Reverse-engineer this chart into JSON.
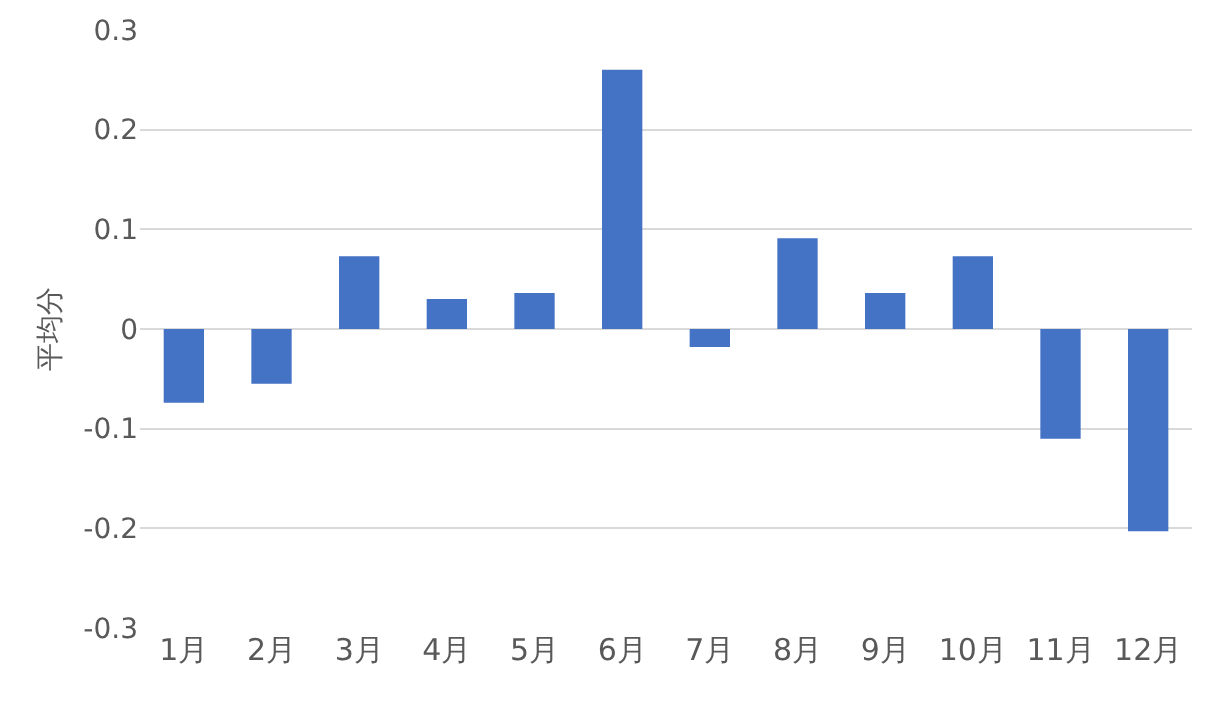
{
  "chart_data": {
    "type": "bar",
    "ylabel": "平均分",
    "categories": [
      "1月",
      "2月",
      "3月",
      "4月",
      "5月",
      "6月",
      "7月",
      "8月",
      "9月",
      "10月",
      "11月",
      "12月"
    ],
    "values": [
      -0.074,
      -0.055,
      0.073,
      0.03,
      0.036,
      0.26,
      -0.018,
      0.091,
      0.036,
      0.073,
      -0.11,
      -0.203
    ],
    "color": "#4472c4",
    "ylim": [
      -0.3,
      0.3
    ],
    "yticks": [
      -0.3,
      -0.2,
      -0.1,
      0,
      0.1,
      0.2,
      0.3
    ],
    "grid": "y",
    "legend": false
  }
}
